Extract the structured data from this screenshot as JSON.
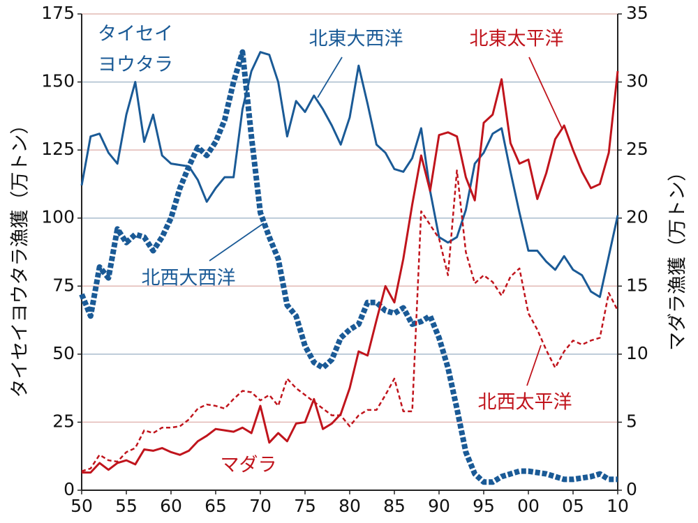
{
  "chart_data": {
    "type": "line",
    "ylabel": "タイセイヨウタラ漁獲（万トン）",
    "y2label": "マダラ漁獲（万トン）",
    "annotations": [
      "タイセイ",
      "ヨウタラ",
      "マダラ"
    ],
    "x": [
      1950,
      1951,
      1952,
      1953,
      1954,
      1955,
      1956,
      1957,
      1958,
      1959,
      1960,
      1961,
      1962,
      1963,
      1964,
      1965,
      1966,
      1967,
      1968,
      1969,
      1970,
      1971,
      1972,
      1973,
      1974,
      1975,
      1976,
      1977,
      1978,
      1979,
      1980,
      1981,
      1982,
      1983,
      1984,
      1985,
      1986,
      1987,
      1988,
      1989,
      1990,
      1991,
      1992,
      1993,
      1994,
      1995,
      1996,
      1997,
      1998,
      1999,
      2000,
      2001,
      2002,
      2003,
      2004,
      2005,
      2006,
      2007,
      2008,
      2009,
      2010
    ],
    "xlim": [
      1950,
      2010
    ],
    "xticks": [
      {
        "value": 1950,
        "label": "50"
      },
      {
        "value": 1955,
        "label": "55"
      },
      {
        "value": 1960,
        "label": "60"
      },
      {
        "value": 1965,
        "label": "65"
      },
      {
        "value": 1970,
        "label": "70"
      },
      {
        "value": 1975,
        "label": "75"
      },
      {
        "value": 1980,
        "label": "80"
      },
      {
        "value": 1985,
        "label": "85"
      },
      {
        "value": 1990,
        "label": "90"
      },
      {
        "value": 1995,
        "label": "95"
      },
      {
        "value": 2000,
        "label": "00"
      },
      {
        "value": 2005,
        "label": "05"
      },
      {
        "value": 2010,
        "label": "10"
      }
    ],
    "ylim": [
      0,
      175
    ],
    "yticks": [
      0,
      25,
      50,
      75,
      100,
      125,
      150,
      175
    ],
    "y2lim": [
      0,
      35
    ],
    "y2ticks": [
      0,
      5,
      10,
      15,
      20,
      25,
      30,
      35
    ],
    "grid": true,
    "series": [
      {
        "name": "北東大西洋",
        "color": "#1a5a96",
        "dash": false,
        "axis": "y",
        "values": [
          112,
          130,
          131,
          124,
          120,
          138,
          150,
          128,
          138,
          123,
          120,
          119.5,
          119,
          114,
          106,
          111,
          115,
          115,
          140,
          154,
          161,
          160,
          150,
          130,
          143,
          139,
          145,
          140,
          134,
          127,
          137,
          156,
          142,
          127,
          124,
          118,
          117,
          122,
          133,
          110,
          93,
          91,
          93,
          103,
          120,
          124,
          131,
          133,
          117,
          102,
          88,
          88,
          84,
          81,
          86,
          81,
          79,
          73,
          71,
          86,
          101
        ]
      },
      {
        "name": "北西大西洋",
        "color": "#1a5a96",
        "dash": true,
        "axis": "y",
        "values": [
          72,
          64,
          82,
          78,
          96,
          91,
          94,
          93,
          88,
          93,
          100,
          111,
          119,
          126,
          123,
          128,
          136,
          150,
          161,
          130,
          102,
          93,
          85,
          68,
          64,
          53,
          47,
          45,
          48,
          56,
          59,
          61,
          69,
          69,
          66,
          65,
          67,
          61,
          62,
          64,
          56,
          45,
          30,
          14,
          6,
          3,
          3,
          5,
          6,
          7,
          7,
          6.5,
          6,
          5,
          4,
          4,
          4.5,
          5,
          6,
          4,
          4
        ]
      },
      {
        "name": "北東太平洋",
        "color": "#c0141c",
        "dash": false,
        "axis": "y2",
        "values": [
          1.3,
          1.3,
          2.0,
          1.5,
          2.0,
          2.2,
          1.9,
          3.0,
          2.9,
          3.1,
          2.8,
          2.6,
          2.9,
          3.6,
          4.0,
          4.5,
          4.4,
          4.3,
          4.6,
          4.2,
          6.2,
          3.5,
          4.2,
          3.6,
          4.9,
          5.0,
          6.7,
          4.5,
          4.9,
          5.6,
          7.5,
          10.2,
          9.9,
          12.5,
          15.0,
          13.8,
          17.0,
          21.0,
          24.6,
          22.0,
          26.1,
          26.3,
          26.0,
          23.0,
          21.3,
          27.0,
          27.6,
          30.2,
          25.5,
          24.0,
          24.3,
          21.4,
          23.3,
          25.8,
          26.8,
          25.0,
          23.4,
          22.2,
          22.5,
          24.8,
          30.8
        ]
      },
      {
        "name": "北西太平洋",
        "color": "#c0141c",
        "dash": true,
        "axis": "y2",
        "values": [
          1.4,
          1.6,
          2.6,
          2.2,
          2.1,
          2.8,
          3.1,
          4.4,
          4.2,
          4.6,
          4.6,
          4.7,
          5.2,
          6.0,
          6.3,
          6.2,
          6.0,
          6.7,
          7.3,
          7.2,
          6.6,
          7.0,
          6.2,
          8.2,
          7.5,
          7.0,
          6.5,
          6.0,
          5.5,
          5.5,
          4.7,
          5.5,
          5.9,
          5.9,
          7.0,
          8.2,
          5.8,
          5.8,
          20.5,
          19.5,
          18.5,
          15.8,
          23.5,
          17.5,
          15.2,
          15.8,
          15.3,
          14.3,
          15.7,
          16.3,
          13.0,
          11.8,
          10.3,
          9.0,
          10.2,
          11.0,
          10.7,
          11.0,
          11.2,
          14.5,
          13.2
        ]
      }
    ]
  }
}
